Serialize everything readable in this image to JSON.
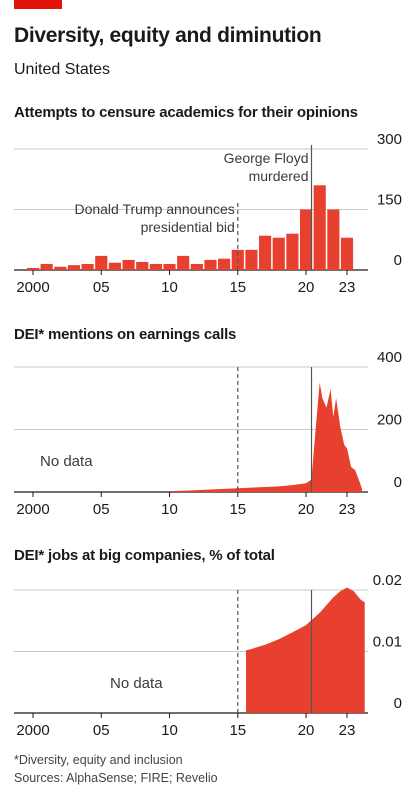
{
  "header": {
    "title": "Diversity, equity and diminution",
    "subtitle": "United States"
  },
  "footer": {
    "footnote": "*Diversity, equity and inclusion",
    "sources": "Sources: AlphaSense; FIRE; Revelio"
  },
  "colors": {
    "accent": "#e3120b",
    "bar": "#e8402e",
    "grid": "#c9c9c9"
  },
  "chart_data": [
    {
      "type": "bar",
      "title": "Attempts to censure academics for their opinions",
      "x": [
        2000,
        2001,
        2002,
        2003,
        2004,
        2005,
        2006,
        2007,
        2008,
        2009,
        2010,
        2011,
        2012,
        2013,
        2014,
        2015,
        2016,
        2017,
        2018,
        2019,
        2020,
        2021,
        2022,
        2023
      ],
      "values": [
        5,
        15,
        8,
        12,
        15,
        35,
        18,
        25,
        20,
        15,
        15,
        35,
        15,
        25,
        28,
        50,
        50,
        85,
        80,
        90,
        150,
        210,
        150,
        80
      ],
      "ylim": [
        0,
        300
      ],
      "yticks": [
        0,
        150,
        300
      ],
      "xtick_labels": [
        "2000",
        "05",
        "10",
        "15",
        "20",
        "23"
      ],
      "xtick_values": [
        2000,
        2005,
        2010,
        2015,
        2020,
        2023
      ],
      "grid": true,
      "annotations": [
        {
          "text": "Donald Trump announces",
          "text2": "presidential bid",
          "x": 2015,
          "style": "dashed"
        },
        {
          "text": "George Floyd",
          "text2": "murdered",
          "x": 2020.4,
          "style": "solid"
        }
      ]
    },
    {
      "type": "area",
      "title": "DEI* mentions on earnings calls",
      "x": [
        2010,
        2011,
        2012,
        2013,
        2014,
        2015,
        2016,
        2017,
        2018,
        2019,
        2020,
        2020.4,
        2020.7,
        2021.0,
        2021.2,
        2021.5,
        2021.8,
        2022.0,
        2022.2,
        2022.5,
        2022.8,
        2023.0,
        2023.3,
        2023.6,
        2023.9,
        2024.1
      ],
      "values": [
        3,
        4,
        6,
        8,
        10,
        12,
        14,
        16,
        18,
        22,
        28,
        40,
        200,
        350,
        300,
        270,
        330,
        240,
        300,
        210,
        150,
        140,
        80,
        70,
        35,
        10
      ],
      "ylim": [
        0,
        400
      ],
      "yticks": [
        0,
        200,
        400
      ],
      "xtick_labels": [
        "2000",
        "05",
        "10",
        "15",
        "20",
        "23"
      ],
      "xtick_values": [
        2000,
        2005,
        2010,
        2015,
        2020,
        2023
      ],
      "grid": true,
      "no_data_label": "No data"
    },
    {
      "type": "area",
      "title": "DEI* jobs at big companies, % of total",
      "x": [
        2015.6,
        2016,
        2017,
        2018,
        2019,
        2020,
        2021,
        2022,
        2022.5,
        2023,
        2023.5,
        2024,
        2024.3
      ],
      "values": [
        0.0102,
        0.0104,
        0.0111,
        0.012,
        0.0131,
        0.0143,
        0.0163,
        0.0188,
        0.0198,
        0.0204,
        0.0198,
        0.0184,
        0.018
      ],
      "ylim": [
        0,
        0.02
      ],
      "yticks": [
        0,
        0.01,
        0.02
      ],
      "xtick_labels": [
        "2000",
        "05",
        "10",
        "15",
        "20",
        "23"
      ],
      "xtick_values": [
        2000,
        2005,
        2010,
        2015,
        2020,
        2023
      ],
      "grid": true,
      "no_data_label": "No data"
    }
  ]
}
